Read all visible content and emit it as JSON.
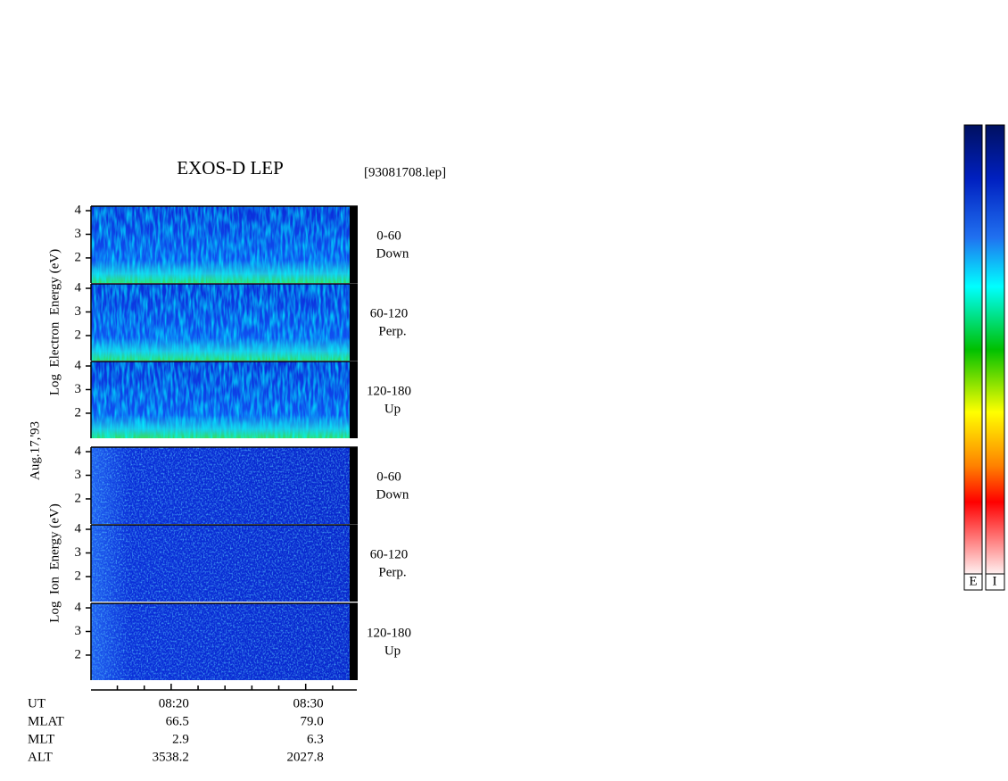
{
  "header": {
    "title": "EXOS-D LEP",
    "file": "[93081708.lep]"
  },
  "date": "Aug.17,'93",
  "electron": {
    "axis_label": "Log  Electron  Energy (eV)",
    "panels": [
      {
        "pitch": "0-60",
        "direction": "Down"
      },
      {
        "pitch": "60-120",
        "direction": "Perp."
      },
      {
        "pitch": "120-180",
        "direction": "Up"
      }
    ]
  },
  "ion": {
    "axis_label": "Log  Ion  Energy (eV)",
    "panels": [
      {
        "pitch": "0-60",
        "direction": "Down"
      },
      {
        "pitch": "60-120",
        "direction": "Perp."
      },
      {
        "pitch": "120-180",
        "direction": "Up"
      }
    ]
  },
  "y_axis": {
    "ylim": [
      0.94,
      4.19
    ],
    "yticks": [
      2,
      3,
      4
    ]
  },
  "x_axis": {
    "xlim": [
      494.04,
      513.8
    ],
    "xticks": [
      {
        "value": 500,
        "label": "08:20"
      },
      {
        "value": 510,
        "label": "08:30"
      }
    ],
    "xminorticks": [
      496,
      498,
      502,
      504,
      506,
      508,
      512
    ]
  },
  "footer": {
    "ut_label": "UT",
    "rows": [
      {
        "label": "MLAT",
        "values": [
          "66.5",
          "79.0"
        ]
      },
      {
        "label": "MLT",
        "values": [
          "2.9",
          "6.3"
        ]
      },
      {
        "label": "ALT",
        "values": [
          "3538.2",
          "2027.8"
        ]
      }
    ]
  },
  "colorbars": {
    "labels": [
      "E",
      "I"
    ]
  }
}
